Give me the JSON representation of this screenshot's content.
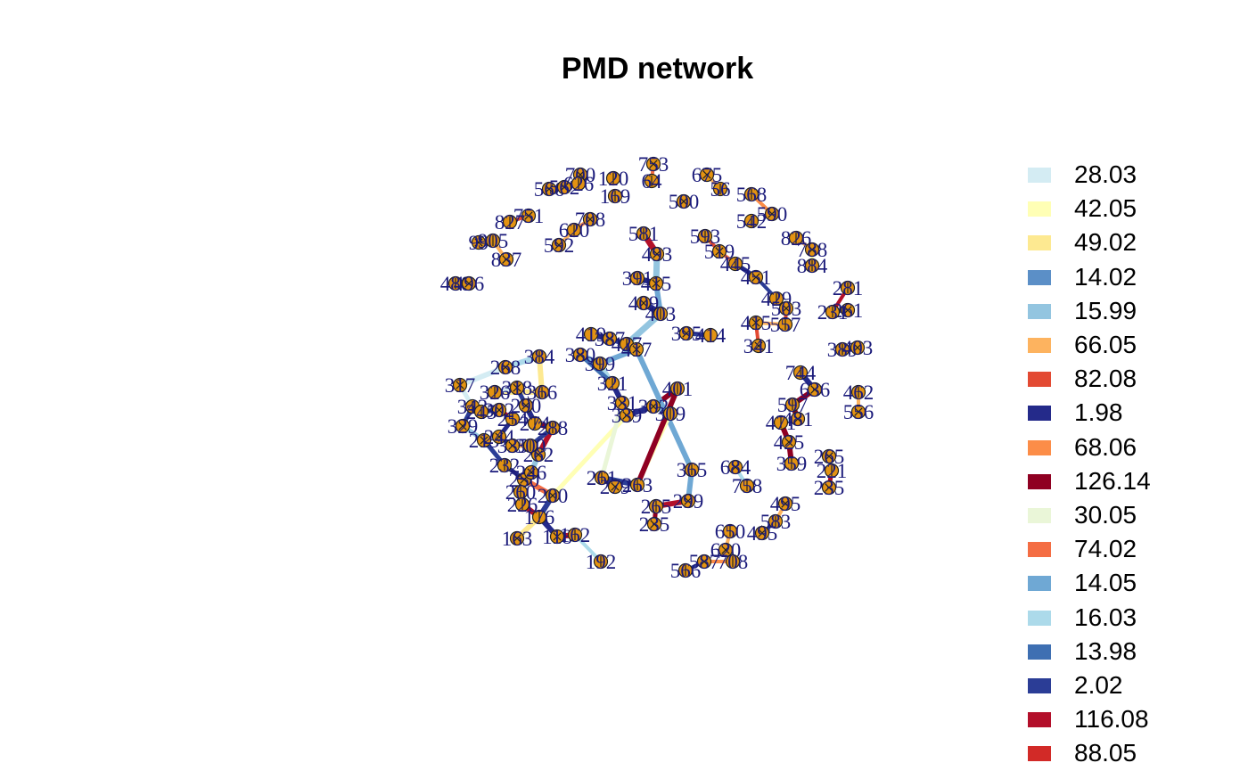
{
  "title": "PMD network",
  "legend": [
    {
      "label": "28.03",
      "color": "#d4ecf3"
    },
    {
      "label": "42.05",
      "color": "#ffffb5"
    },
    {
      "label": "49.02",
      "color": "#fde991"
    },
    {
      "label": "14.02",
      "color": "#5b8fc7"
    },
    {
      "label": "15.99",
      "color": "#93c5e0"
    },
    {
      "label": "66.05",
      "color": "#fdb35f"
    },
    {
      "label": "82.08",
      "color": "#e34a33"
    },
    {
      "label": "1.98",
      "color": "#242a8a"
    },
    {
      "label": "68.06",
      "color": "#fc8d48"
    },
    {
      "label": "126.14",
      "color": "#8f0022"
    },
    {
      "label": "30.05",
      "color": "#eaf6d8"
    },
    {
      "label": "74.02",
      "color": "#f46d43"
    },
    {
      "label": "14.05",
      "color": "#6fa8d4"
    },
    {
      "label": "16.03",
      "color": "#acdaea"
    },
    {
      "label": "13.98",
      "color": "#3e6fb2"
    },
    {
      "label": "2.02",
      "color": "#2b3d96"
    },
    {
      "label": "116.08",
      "color": "#b30f2a"
    },
    {
      "label": "88.05",
      "color": "#d22a27"
    }
  ],
  "network": {
    "node_fill": "#e39312",
    "label_color": "#1a1a7a",
    "nodes": [
      {
        "id": "n1",
        "label": "753"
      },
      {
        "id": "n2",
        "label": "64"
      },
      {
        "id": "n3",
        "label": "675"
      },
      {
        "id": "n4",
        "label": "56"
      },
      {
        "id": "n5",
        "label": "700"
      },
      {
        "id": "n6",
        "label": "120"
      },
      {
        "id": "n7",
        "label": "566"
      },
      {
        "id": "n8",
        "label": "169"
      },
      {
        "id": "n9",
        "label": "500"
      },
      {
        "id": "n10",
        "label": "568"
      },
      {
        "id": "n11",
        "label": "590"
      },
      {
        "id": "n12",
        "label": "542"
      },
      {
        "id": "n13",
        "label": "562"
      },
      {
        "id": "n14",
        "label": "626"
      },
      {
        "id": "n15",
        "label": "751"
      },
      {
        "id": "n16",
        "label": "827"
      },
      {
        "id": "n17",
        "label": "708"
      },
      {
        "id": "n18",
        "label": "620"
      },
      {
        "id": "n19",
        "label": "592"
      },
      {
        "id": "n20",
        "label": "581"
      },
      {
        "id": "n21",
        "label": "493"
      },
      {
        "id": "n22",
        "label": "593"
      },
      {
        "id": "n23",
        "label": "519"
      },
      {
        "id": "n24",
        "label": "826"
      },
      {
        "id": "n25",
        "label": "788"
      },
      {
        "id": "n26",
        "label": "884"
      },
      {
        "id": "n27",
        "label": "99"
      },
      {
        "id": "n28",
        "label": "905"
      },
      {
        "id": "n29",
        "label": "837"
      },
      {
        "id": "n30",
        "label": "445"
      },
      {
        "id": "n31",
        "label": "451"
      },
      {
        "id": "n32",
        "label": "480"
      },
      {
        "id": "n33",
        "label": "496"
      },
      {
        "id": "n34",
        "label": "391"
      },
      {
        "id": "n35",
        "label": "415"
      },
      {
        "id": "n36",
        "label": "429"
      },
      {
        "id": "n37",
        "label": "503"
      },
      {
        "id": "n38",
        "label": "281"
      },
      {
        "id": "n39",
        "label": "261"
      },
      {
        "id": "n40",
        "label": "231"
      },
      {
        "id": "n41",
        "label": "409"
      },
      {
        "id": "n42",
        "label": "403"
      },
      {
        "id": "n43",
        "label": "415"
      },
      {
        "id": "n44",
        "label": "557"
      },
      {
        "id": "n45",
        "label": "395"
      },
      {
        "id": "n46",
        "label": "414"
      },
      {
        "id": "n47",
        "label": "341"
      },
      {
        "id": "n48",
        "label": "389"
      },
      {
        "id": "n49",
        "label": "403"
      },
      {
        "id": "n50",
        "label": "419"
      },
      {
        "id": "n51",
        "label": "387"
      },
      {
        "id": "n52",
        "label": "427"
      },
      {
        "id": "n53",
        "label": "417"
      },
      {
        "id": "n54",
        "label": "384"
      },
      {
        "id": "n55",
        "label": "380"
      },
      {
        "id": "n56",
        "label": "399"
      },
      {
        "id": "n57",
        "label": "268"
      },
      {
        "id": "n58",
        "label": "321"
      },
      {
        "id": "n59",
        "label": "331"
      },
      {
        "id": "n60",
        "label": "366"
      },
      {
        "id": "n61",
        "label": "317"
      },
      {
        "id": "n62",
        "label": "401"
      },
      {
        "id": "n63",
        "label": "302"
      },
      {
        "id": "n64",
        "label": "309"
      },
      {
        "id": "n65",
        "label": "339"
      },
      {
        "id": "n66",
        "label": "343"
      },
      {
        "id": "n67",
        "label": "329"
      },
      {
        "id": "n68",
        "label": "744"
      },
      {
        "id": "n69",
        "label": "636"
      },
      {
        "id": "n70",
        "label": "462"
      },
      {
        "id": "n71",
        "label": "556"
      },
      {
        "id": "n72",
        "label": "597"
      },
      {
        "id": "n73",
        "label": "481"
      },
      {
        "id": "n74",
        "label": "471"
      },
      {
        "id": "n75",
        "label": "425"
      },
      {
        "id": "n76",
        "label": "359"
      },
      {
        "id": "n77",
        "label": "265"
      },
      {
        "id": "n78",
        "label": "221"
      },
      {
        "id": "n79",
        "label": "235"
      },
      {
        "id": "n80",
        "label": "365"
      },
      {
        "id": "n81",
        "label": "684"
      },
      {
        "id": "n82",
        "label": "758"
      },
      {
        "id": "n83",
        "label": "495"
      },
      {
        "id": "n84",
        "label": "583"
      },
      {
        "id": "n85",
        "label": "495"
      },
      {
        "id": "n86",
        "label": "650"
      },
      {
        "id": "n87",
        "label": "620"
      },
      {
        "id": "n88",
        "label": "708"
      },
      {
        "id": "n89",
        "label": "587"
      },
      {
        "id": "n90",
        "label": "566"
      },
      {
        "id": "n91",
        "label": "299"
      },
      {
        "id": "n92",
        "label": "265"
      },
      {
        "id": "n93",
        "label": "235"
      },
      {
        "id": "n94",
        "label": "261"
      },
      {
        "id": "n95",
        "label": "279"
      },
      {
        "id": "n96",
        "label": "263"
      },
      {
        "id": "n97",
        "label": "200"
      },
      {
        "id": "n98",
        "label": "192"
      },
      {
        "id": "n99",
        "label": "163"
      },
      {
        "id": "n100",
        "label": "176"
      },
      {
        "id": "n101",
        "label": "118"
      },
      {
        "id": "n102",
        "label": "162"
      },
      {
        "id": "n103",
        "label": "250"
      },
      {
        "id": "n104",
        "label": "260"
      },
      {
        "id": "n105",
        "label": "246"
      },
      {
        "id": "n106",
        "label": "226"
      },
      {
        "id": "n107",
        "label": "262"
      },
      {
        "id": "n108",
        "label": "232"
      },
      {
        "id": "n109",
        "label": "215"
      },
      {
        "id": "n110",
        "label": "254"
      },
      {
        "id": "n111",
        "label": "244"
      },
      {
        "id": "n112",
        "label": "326"
      },
      {
        "id": "n113",
        "label": "290"
      },
      {
        "id": "n114",
        "label": "274"
      },
      {
        "id": "n115",
        "label": "302"
      },
      {
        "id": "n116",
        "label": "245"
      },
      {
        "id": "n117",
        "label": "318"
      },
      {
        "id": "n118",
        "label": "288"
      },
      {
        "id": "n119",
        "label": "335"
      },
      {
        "id": "n120",
        "label": "300"
      }
    ]
  }
}
